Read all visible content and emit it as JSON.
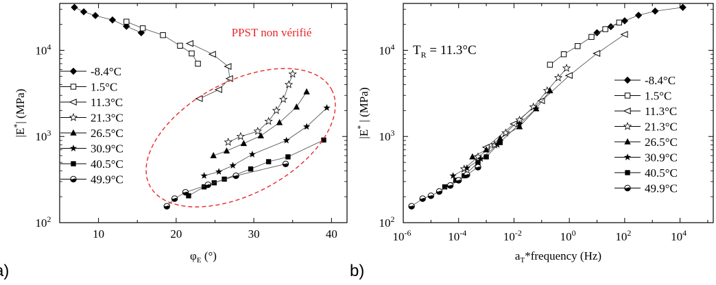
{
  "panel_labels": {
    "a": "a)",
    "b": "b)"
  },
  "chart_data": [
    {
      "type": "scatter",
      "title": "",
      "xlabel": "φE (°)",
      "ylabel": "|E*| (MPa)",
      "xlim": [
        5,
        42
      ],
      "ylim": [
        100,
        35000
      ],
      "yscale": "log",
      "x_ticks": [
        "10",
        "20",
        "30",
        "40"
      ],
      "y_ticks": [
        "10^2",
        "10^3",
        "10^4"
      ],
      "legend_position": "left",
      "annotation": {
        "text": "PPST non vérifié",
        "color": "#e8262a",
        "shape": "dashed-ellipse"
      },
      "series": [
        {
          "name": "-8.4°C",
          "marker": "diamond-filled",
          "points": [
            [
              6.9,
              31500
            ],
            [
              8.1,
              28000
            ],
            [
              9.6,
              25300
            ],
            [
              11.8,
              22500
            ],
            [
              13.6,
              19000
            ],
            [
              15.5,
              16000
            ]
          ]
        },
        {
          "name": "1.5°C",
          "marker": "square-open",
          "points": [
            [
              13.6,
              21500
            ],
            [
              15.7,
              18000
            ],
            [
              18.3,
              15000
            ],
            [
              20.5,
              11300
            ],
            [
              22.0,
              9200
            ],
            [
              22.8,
              7000
            ]
          ]
        },
        {
          "name": "11.3°C",
          "marker": "triangle-left-open",
          "points": [
            [
              21.8,
              12000
            ],
            [
              24.7,
              9000
            ],
            [
              26.7,
              6500
            ],
            [
              26.9,
              4700
            ],
            [
              25.5,
              3500
            ],
            [
              23.0,
              2750
            ]
          ]
        },
        {
          "name": "21.3°C",
          "marker": "star-open",
          "points": [
            [
              26.7,
              860
            ],
            [
              28.3,
              1000
            ],
            [
              30.5,
              1150
            ],
            [
              31.9,
              1500
            ],
            [
              32.9,
              2000
            ],
            [
              33.8,
              2700
            ],
            [
              34.5,
              4000
            ],
            [
              35.0,
              5300
            ]
          ]
        },
        {
          "name": "26.5°C",
          "marker": "triangle-up-filled",
          "points": [
            [
              24.8,
              600
            ],
            [
              26.5,
              680
            ],
            [
              28.7,
              830
            ],
            [
              30.9,
              1020
            ],
            [
              33.3,
              1450
            ],
            [
              35.5,
              2200
            ],
            [
              36.8,
              3300
            ]
          ]
        },
        {
          "name": "30.9°C",
          "marker": "star-filled",
          "points": [
            [
              23.6,
              350
            ],
            [
              25.5,
              390
            ],
            [
              27.3,
              460
            ],
            [
              29.8,
              620
            ],
            [
              34.2,
              900
            ],
            [
              36.8,
              1300
            ],
            [
              39.4,
              2150
            ]
          ]
        },
        {
          "name": "40.5°C",
          "marker": "square-filled",
          "points": [
            [
              21.6,
              205
            ],
            [
              23.6,
              260
            ],
            [
              24.9,
              290
            ],
            [
              26.2,
              320
            ],
            [
              29.6,
              420
            ],
            [
              31.9,
              510
            ],
            [
              34.4,
              580
            ],
            [
              39.0,
              910
            ]
          ]
        },
        {
          "name": "49.9°C",
          "marker": "circle-half",
          "points": [
            [
              18.8,
              155
            ],
            [
              19.8,
              190
            ],
            [
              21.2,
              225
            ],
            [
              24.1,
              275
            ],
            [
              27.7,
              350
            ],
            [
              34.1,
              480
            ]
          ]
        }
      ]
    },
    {
      "type": "scatter",
      "title": "",
      "xlabel": "aT*frequency (Hz)",
      "ylabel": "|E*| (MPa)",
      "xlim": [
        -6,
        5.2
      ],
      "ylim": [
        100,
        35000
      ],
      "xscale": "log",
      "yscale": "log",
      "x_ticks": [
        "10^-6",
        "10^-4",
        "10^-2",
        "10^0",
        "10^2",
        "10^4"
      ],
      "y_ticks": [
        "10^2",
        "10^3",
        "10^4"
      ],
      "legend_position": "right",
      "annotation": {
        "text": "TR = 11.3°C"
      },
      "series": [
        {
          "name": "-8.4°C",
          "marker": "diamond-filled",
          "points": [
            [
              1.0,
              16000
            ],
            [
              1.5,
              18800
            ],
            [
              2.0,
              22000
            ],
            [
              2.5,
              25500
            ],
            [
              3.1,
              28500
            ],
            [
              4.1,
              31500
            ]
          ]
        },
        {
          "name": "1.5°C",
          "marker": "square-open",
          "points": [
            [
              -0.7,
              6800
            ],
            [
              -0.2,
              9000
            ],
            [
              0.3,
              11200
            ],
            [
              0.8,
              14300
            ],
            [
              1.3,
              17600
            ],
            [
              1.8,
              21000
            ]
          ]
        },
        {
          "name": "11.3°C",
          "marker": "triangle-left-open",
          "points": [
            [
              -3.0,
              750
            ],
            [
              -2.0,
              1400
            ],
            [
              -1.0,
              2600
            ],
            [
              0.0,
              5100
            ],
            [
              1.0,
              9200
            ],
            [
              2.0,
              15300
            ]
          ]
        },
        {
          "name": "21.3°C",
          "marker": "star-open",
          "points": [
            [
              -3.8,
              420
            ],
            [
              -3.3,
              580
            ],
            [
              -2.7,
              800
            ],
            [
              -2.3,
              1100
            ],
            [
              -1.8,
              1550
            ],
            [
              -1.3,
              2200
            ],
            [
              -0.8,
              3400
            ],
            [
              -0.4,
              4800
            ],
            [
              -0.1,
              6200
            ]
          ]
        },
        {
          "name": "26.5°C",
          "marker": "triangle-up-filled",
          "points": [
            [
              -3.5,
              580
            ],
            [
              -3.0,
              700
            ],
            [
              -2.5,
              950
            ],
            [
              -1.8,
              1300
            ],
            [
              -1.2,
              2100
            ],
            [
              -0.7,
              3400
            ]
          ]
        },
        {
          "name": "30.9°C",
          "marker": "star-filled",
          "points": [
            [
              -4.2,
              350
            ],
            [
              -3.7,
              430
            ],
            [
              -3.2,
              550
            ],
            [
              -2.6,
              800
            ],
            [
              -1.8,
              1400
            ],
            [
              -1.2,
              2100
            ]
          ]
        },
        {
          "name": "40.5°C",
          "marker": "square-filled",
          "points": [
            [
              -4.5,
              260
            ],
            [
              -4.1,
              310
            ],
            [
              -3.8,
              350
            ],
            [
              -3.3,
              500
            ],
            [
              -3.0,
              580
            ],
            [
              -2.5,
              850
            ]
          ]
        },
        {
          "name": "49.9°C",
          "marker": "circle-half",
          "points": [
            [
              -5.7,
              155
            ],
            [
              -5.3,
              190
            ],
            [
              -5.0,
              205
            ],
            [
              -4.7,
              230
            ],
            [
              -4.3,
              270
            ],
            [
              -4.0,
              310
            ],
            [
              -3.7,
              360
            ],
            [
              -3.3,
              440
            ]
          ]
        }
      ]
    }
  ]
}
